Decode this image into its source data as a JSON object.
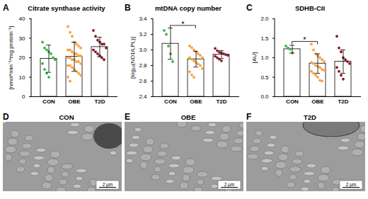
{
  "chart_data": [
    {
      "type": "bar",
      "letter": "A",
      "title": "Citrate synthase activity",
      "y_label": "[nmol*min⁻¹*mg protein⁻¹]",
      "categories": [
        "CON",
        "OBE",
        "T2D"
      ],
      "colors": [
        "#3cb44b",
        "#f5a340",
        "#8b1a2b"
      ],
      "values": [
        19.5,
        20.5,
        25.5
      ],
      "errors": [
        7,
        7.5,
        5
      ],
      "points": [
        [
          28,
          25,
          24,
          23,
          22,
          20,
          19,
          17,
          14,
          12,
          10
        ],
        [
          36,
          33,
          31,
          28,
          27,
          26,
          25,
          24,
          24,
          23,
          22,
          22,
          21,
          21,
          20,
          20,
          19,
          19,
          18,
          18,
          17,
          16,
          16,
          15,
          14,
          13,
          12,
          11,
          10,
          8
        ],
        [
          34,
          31,
          29,
          28,
          27,
          27,
          25,
          24,
          23,
          22,
          21,
          20,
          19
        ]
      ],
      "ylim": [
        0,
        40
      ],
      "yticks": [
        0,
        10,
        20,
        30,
        40
      ]
    },
    {
      "type": "bar",
      "letter": "B",
      "title": "mtDNA copy number",
      "y_label": "[log₁₀(ND1/LPL)]",
      "categories": [
        "CON",
        "OBE",
        "T2D"
      ],
      "colors": [
        "#3cb44b",
        "#f5a340",
        "#8b1a2b"
      ],
      "values": [
        3.08,
        2.88,
        2.94
      ],
      "errors": [
        0.2,
        0.1,
        0.05
      ],
      "points": [
        [
          3.25,
          3.2,
          3.05,
          2.95,
          2.85
        ],
        [
          3.05,
          3.03,
          3.0,
          2.98,
          2.95,
          2.93,
          2.9,
          2.9,
          2.88,
          2.86,
          2.84,
          2.82,
          2.8,
          2.76,
          2.72,
          2.68,
          2.65
        ],
        [
          3.02,
          2.99,
          2.97,
          2.96,
          2.95,
          2.94,
          2.93,
          2.92,
          2.9,
          2.88,
          2.86
        ]
      ],
      "ylim": [
        2.4,
        3.4
      ],
      "yticks": [
        2.4,
        2.6,
        2.8,
        {
          "value": 3,
          "label": "3.0"
        },
        3.2,
        3.4
      ],
      "significance": [
        {
          "from": "CON",
          "to": "OBE",
          "label": "*"
        }
      ]
    },
    {
      "type": "bar",
      "letter": "C",
      "title": "SDHB-CII",
      "y_label": "[AU]",
      "categories": [
        "CON",
        "OBE",
        "T2D"
      ],
      "colors": [
        "#3cb44b",
        "#f5a340",
        "#8b1a2b"
      ],
      "values": [
        1.22,
        0.85,
        0.9
      ],
      "errors": [
        0.1,
        0.25,
        0.3
      ],
      "points": [
        [
          1.3,
          1.25,
          1.22,
          1.12
        ],
        [
          1.35,
          1.2,
          1.1,
          1.05,
          1.0,
          0.95,
          0.9,
          0.88,
          0.85,
          0.8,
          0.78,
          0.75,
          0.7,
          0.68,
          0.65,
          0.6,
          0.55,
          0.5,
          0.42,
          0.4
        ],
        [
          1.55,
          1.25,
          1.15,
          1.0,
          0.95,
          0.9,
          0.85,
          0.75,
          0.65,
          0.55,
          0.45
        ]
      ],
      "ylim": [
        0,
        2
      ],
      "yticks": [
        {
          "value": 0,
          "label": "0.0"
        },
        0.5,
        {
          "value": 1,
          "label": "1.0"
        },
        1.5,
        {
          "value": 2,
          "label": "2.0"
        }
      ],
      "significance": [
        {
          "from": "CON",
          "to": "OBE",
          "label": "*"
        }
      ]
    }
  ],
  "images": [
    {
      "letter": "D",
      "title": "CON",
      "scale_bar": "2 µm"
    },
    {
      "letter": "E",
      "title": "OBE",
      "scale_bar": "2 µm"
    },
    {
      "letter": "F",
      "title": "T2D",
      "scale_bar": "2 µm"
    }
  ]
}
